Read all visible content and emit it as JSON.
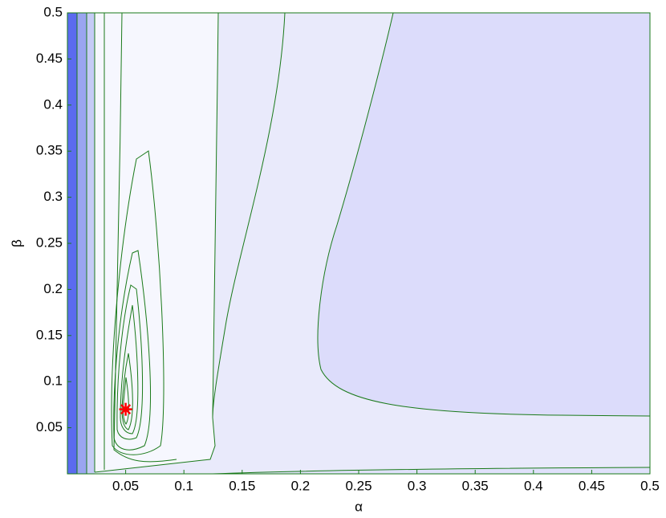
{
  "chart_data": {
    "type": "contour",
    "xlabel": "α",
    "ylabel": "β",
    "xlim": [
      0,
      0.5
    ],
    "ylim": [
      0,
      0.5
    ],
    "xticks": [
      0.05,
      0.1,
      0.15,
      0.2,
      0.25,
      0.3,
      0.35,
      0.4,
      0.45,
      0.5
    ],
    "yticks": [
      0.05,
      0.1,
      0.15,
      0.2,
      0.25,
      0.3,
      0.35,
      0.4,
      0.45,
      0.5
    ],
    "contour_color": "#1a7a1a",
    "marker": {
      "x": 0.05,
      "y": 0.07,
      "color": "#ff0000"
    }
  }
}
